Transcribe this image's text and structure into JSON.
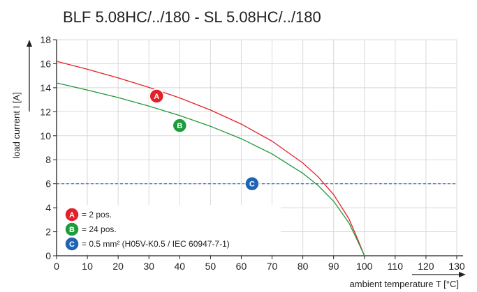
{
  "chart_data": {
    "type": "line",
    "title": "BLF 5.08HC/../180 - SL 5.08HC/../180",
    "xlabel": "ambient temperature T [°C]",
    "ylabel": "load current I [A]",
    "xlim": [
      0,
      130
    ],
    "ylim": [
      0,
      18
    ],
    "xticks": [
      "0",
      "10",
      "20",
      "30",
      "40",
      "50",
      "60",
      "70",
      "80",
      "90",
      "100",
      "110",
      "120",
      "130"
    ],
    "yticks": [
      "0",
      "2",
      "4",
      "6",
      "8",
      "10",
      "12",
      "14",
      "16",
      "18"
    ],
    "grid": true,
    "legend_position": "bottom-left",
    "series": [
      {
        "name": "2 pos.",
        "badge": "A",
        "color": "#e3202a",
        "style": "solid",
        "x": [
          0,
          10,
          20,
          30,
          40,
          50,
          60,
          70,
          80,
          85,
          90,
          95,
          98,
          100
        ],
        "y": [
          16.2,
          15.54,
          14.82,
          14.03,
          13.15,
          12.14,
          10.97,
          9.55,
          7.73,
          6.57,
          5.1,
          3.07,
          1.26,
          0
        ]
      },
      {
        "name": "24 pos.",
        "badge": "B",
        "color": "#1f9a3c",
        "style": "solid",
        "x": [
          0,
          10,
          20,
          30,
          40,
          50,
          60,
          70,
          80,
          85,
          90,
          95,
          98,
          100
        ],
        "y": [
          14.4,
          13.81,
          13.18,
          12.47,
          11.68,
          10.79,
          9.75,
          8.49,
          6.87,
          5.84,
          4.54,
          2.73,
          1.12,
          0
        ]
      },
      {
        "name": "0.5 mm² (H05V-K0.5 / IEC 60947-7-1)",
        "badge": "C",
        "color": "#1f64b4",
        "style": "dashed",
        "x": [
          0,
          130
        ],
        "y": [
          6,
          6
        ]
      }
    ],
    "annotations": [
      {
        "badge": "A",
        "x": 32.5,
        "y": 13.3
      },
      {
        "badge": "B",
        "x": 40,
        "y": 10.85
      },
      {
        "badge": "C",
        "x": 63.5,
        "y": 6
      }
    ],
    "legend": [
      {
        "badge": "A",
        "color": "#e3202a",
        "label": "= 2 pos."
      },
      {
        "badge": "B",
        "color": "#1f9a3c",
        "label": "= 24 pos."
      },
      {
        "badge": "C",
        "color": "#1f64b4",
        "label": "= 0.5 mm² (H05V-K0.5 / IEC 60947-7-1)"
      }
    ]
  }
}
